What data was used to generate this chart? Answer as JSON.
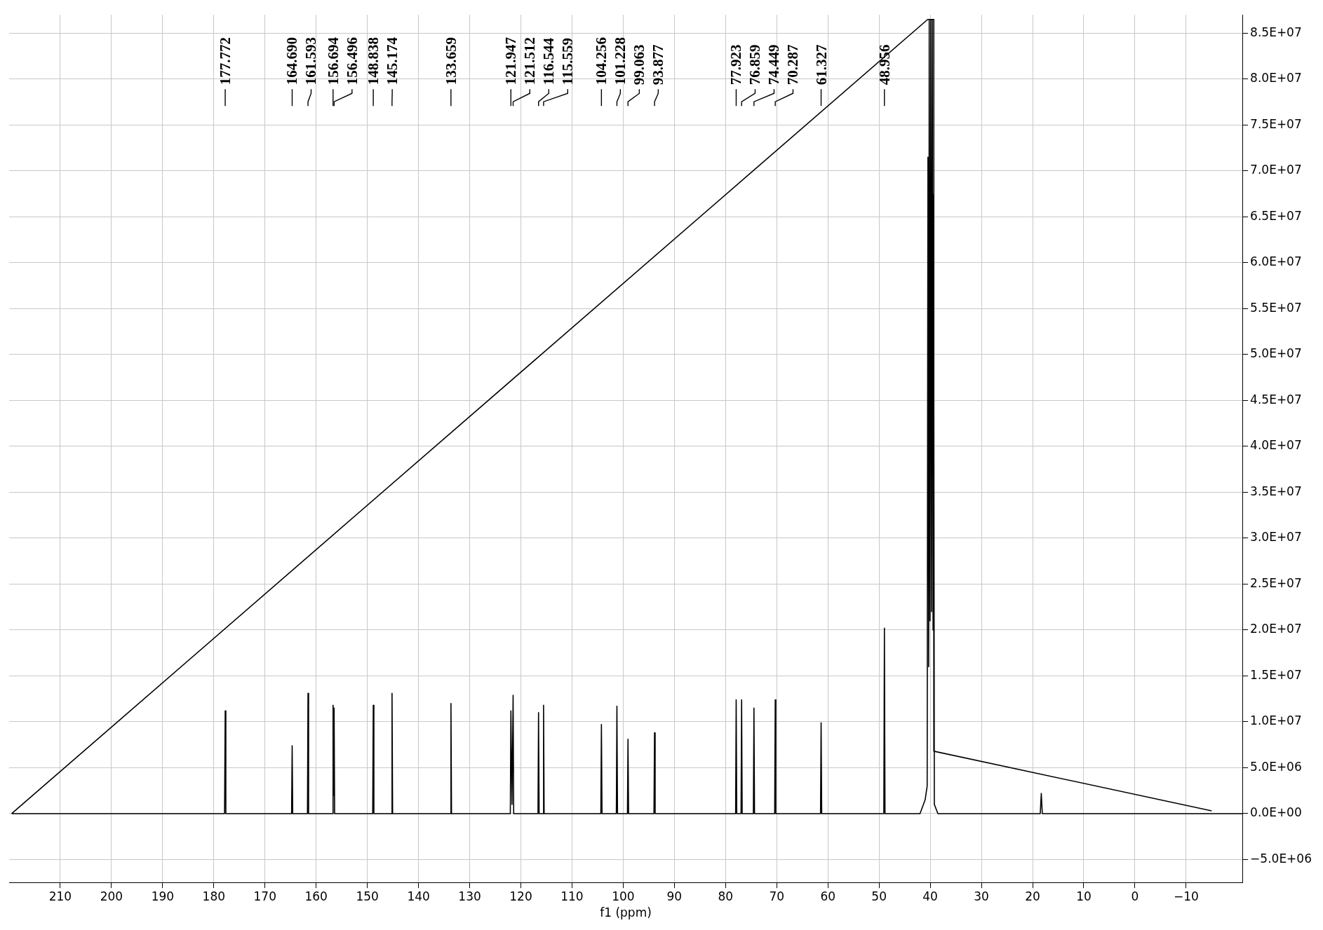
{
  "chart_data": {
    "type": "line",
    "xlabel": "f1 (ppm)",
    "xlim": [
      220,
      -21
    ],
    "xticks": [
      210,
      200,
      190,
      180,
      170,
      160,
      150,
      140,
      130,
      120,
      110,
      100,
      90,
      80,
      70,
      60,
      50,
      40,
      30,
      20,
      10,
      0,
      {
        "value": -10,
        "label": "−10"
      }
    ],
    "ylim": [
      -7500000,
      87000000
    ],
    "yticks": [
      {
        "value": -5000000,
        "label": "−5.0E+06"
      },
      {
        "value": 0,
        "label": "0.0E+00"
      },
      {
        "value": 5000000,
        "label": "5.0E+06"
      },
      {
        "value": 10000000,
        "label": "1.0E+07"
      },
      {
        "value": 15000000,
        "label": "1.5E+07"
      },
      {
        "value": 20000000,
        "label": "2.0E+07"
      },
      {
        "value": 25000000,
        "label": "2.5E+07"
      },
      {
        "value": 30000000,
        "label": "3.0E+07"
      },
      {
        "value": 35000000,
        "label": "3.5E+07"
      },
      {
        "value": 40000000,
        "label": "4.0E+07"
      },
      {
        "value": 45000000,
        "label": "4.5E+07"
      },
      {
        "value": 50000000,
        "label": "5.0E+07"
      },
      {
        "value": 55000000,
        "label": "5.5E+07"
      },
      {
        "value": 60000000,
        "label": "6.0E+07"
      },
      {
        "value": 65000000,
        "label": "6.5E+07"
      },
      {
        "value": 70000000,
        "label": "7.0E+07"
      },
      {
        "value": 75000000,
        "label": "7.5E+07"
      },
      {
        "value": 80000000,
        "label": "8.0E+07"
      },
      {
        "value": 85000000,
        "label": "8.5E+07"
      }
    ],
    "grid": true,
    "legend": false,
    "marker": "none",
    "line_style": "solid",
    "series": [
      {
        "color": "#000000",
        "x": [
          219.5,
          177.9,
          177.772,
          177.65,
          164.8,
          164.69,
          164.58,
          161.7,
          161.593,
          161.48,
          156.8,
          156.694,
          156.6,
          156.496,
          156.39,
          148.95,
          148.838,
          148.72,
          145.29,
          145.174,
          145.06,
          133.77,
          133.659,
          133.55,
          122.06,
          121.947,
          121.73,
          121.512,
          121.4,
          116.65,
          116.544,
          116.43,
          115.67,
          115.559,
          115.45,
          104.37,
          104.256,
          104.14,
          101.34,
          101.228,
          101.11,
          99.17,
          99.063,
          98.95,
          93.99,
          93.877,
          93.76,
          78.03,
          77.923,
          77.81,
          76.97,
          76.859,
          76.75,
          74.56,
          74.449,
          74.34,
          70.4,
          70.287,
          70.18,
          61.44,
          61.327,
          61.21,
          49.07,
          48.956,
          48.84,
          42,
          41.0,
          40.6,
          40.45,
          40.3,
          40.2,
          40.05,
          39.9,
          39.75,
          39.6,
          39.45,
          39.35,
          39.2,
          38.5,
          18.5,
          18.3,
          18.1,
          -21
        ],
        "values": [
          0,
          0,
          11200000,
          0,
          0,
          7400000,
          0,
          0,
          13100000,
          0,
          0,
          11800000,
          2000000,
          11500000,
          0,
          0,
          11800000,
          0,
          0,
          13100000,
          0,
          0,
          12000000,
          0,
          0,
          11200000,
          1000000,
          12900000,
          0,
          0,
          11000000,
          0,
          0,
          11800000,
          0,
          0,
          9700000,
          0,
          0,
          11700000,
          0,
          0,
          8100000,
          0,
          0,
          8800000,
          0,
          0,
          12400000,
          0,
          0,
          12400000,
          0,
          0,
          11500000,
          0,
          0,
          12400000,
          0,
          0,
          9900000,
          0,
          0,
          20200000,
          0,
          0,
          1500000,
          3000000,
          71500000,
          16000000,
          86500000,
          21000000,
          86500000,
          22000000,
          86500000,
          20000000,
          67400000,
          1000000,
          0,
          0,
          2200000,
          0,
          0
        ]
      },
      {
        "color": "#000000",
        "x": [
          219.5,
          40.5,
          39.3,
          39.3,
          -15
        ],
        "values": [
          0,
          86500000,
          86500000,
          6800000,
          300000
        ]
      }
    ],
    "annotations": [
      "177.772",
      "164.690",
      "161.593",
      "156.694",
      "156.496",
      "148.838",
      "145.174",
      "133.659",
      "121.947",
      "121.512",
      "116.544",
      "115.559",
      "104.256",
      "101.228",
      "99.063",
      "93.877",
      "77.923",
      "76.859",
      "74.449",
      "70.287",
      "61.327",
      "48.956"
    ]
  }
}
